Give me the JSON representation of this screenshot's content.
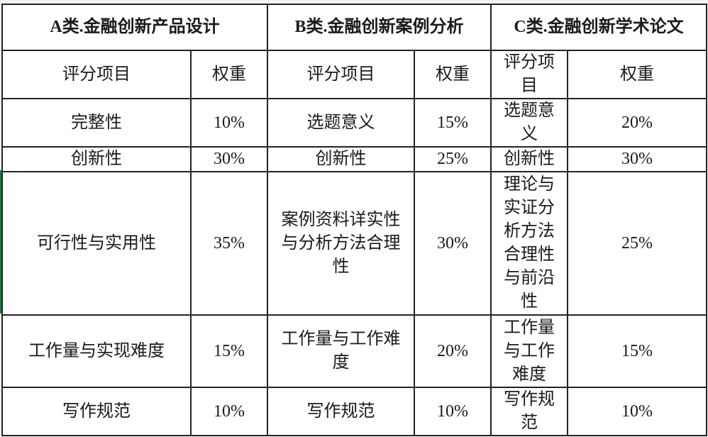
{
  "categories": [
    {
      "title": "A类.金融创新产品设计"
    },
    {
      "title": "B类.金融创新案例分析"
    },
    {
      "title": "C类.金融创新学术论文"
    }
  ],
  "column_headers": {
    "item": "评分项目",
    "weight": "权重"
  },
  "rows": [
    {
      "a_item": "完整性",
      "a_weight": "10%",
      "b_item": "选题意义",
      "b_weight": "15%",
      "c_item": "选题意义",
      "c_weight": "20%"
    },
    {
      "a_item": "创新性",
      "a_weight": "30%",
      "b_item": "创新性",
      "b_weight": "25%",
      "c_item": "创新性",
      "c_weight": "30%"
    },
    {
      "a_item": "可行性与实用性",
      "a_weight": "35%",
      "b_item": "案例资料详实性与分析方法合理性",
      "b_weight": "30%",
      "c_item": "理论与实证分析方法合理性与前沿性",
      "c_weight": "25%"
    },
    {
      "a_item": "工作量与实现难度",
      "a_weight": "15%",
      "b_item": "工作量与工作难度",
      "b_weight": "20%",
      "c_item": "工作量与工作难度",
      "c_weight": "15%"
    },
    {
      "a_item": "写作规范",
      "a_weight": "10%",
      "b_item": "写作规范",
      "b_weight": "10%",
      "c_item": "写作规范",
      "c_weight": "10%"
    }
  ]
}
